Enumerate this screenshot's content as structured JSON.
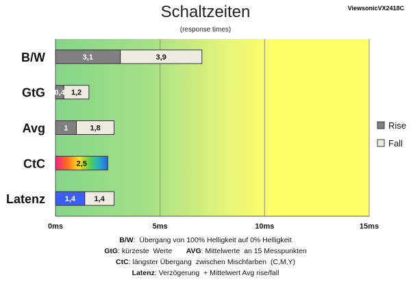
{
  "chart_data": {
    "type": "bar",
    "stacked": true,
    "orientation": "horizontal",
    "title": "Schaltzeiten",
    "subtitle": "(response times)",
    "model": "ViewsonicVX2418C",
    "categories": [
      "B/W",
      "GtG",
      "Avg",
      "CtC",
      "Latenz"
    ],
    "series": [
      {
        "name": "Rise",
        "values": [
          3.1,
          0.4,
          1,
          null,
          null
        ]
      },
      {
        "name": "Fall",
        "values": [
          3.9,
          1.2,
          1.8,
          null,
          null
        ]
      }
    ],
    "special": {
      "CtC": {
        "value": 2.5,
        "label": "2,5",
        "style": "rainbow"
      },
      "Latenz": {
        "values": [
          1.4,
          1.4
        ],
        "labels": [
          "1,4",
          "1,4"
        ]
      }
    },
    "bar_labels": [
      [
        "3,1",
        "3,9"
      ],
      [
        "0,4",
        "1,2"
      ],
      [
        "1",
        "1,8"
      ],
      [
        "2,5"
      ],
      [
        "1,4",
        "1,4"
      ]
    ],
    "xlim": [
      0,
      15
    ],
    "x_ticks": [
      {
        "value": 0,
        "label": "0ms"
      },
      {
        "value": 5,
        "label": "5ms"
      },
      {
        "value": 10,
        "label": "10ms"
      },
      {
        "value": 15,
        "label": "15ms"
      }
    ],
    "legend": {
      "position": "right",
      "items": [
        {
          "name": "Rise",
          "color": "#808080"
        },
        {
          "name": "Fall",
          "color": "#eeece1"
        }
      ]
    },
    "colors": {
      "rise": "#808080",
      "fall": "#eeece1",
      "latenz_rise": "#3d5ef2",
      "bg_green": "#8ad88a",
      "bg_yellow": "#ffff66"
    },
    "grid": true
  },
  "footnotes": [
    {
      "term": "B/W",
      "text": ":  Übergang von 100% Helligkeit auf 0% Helligkeit"
    },
    {
      "term": "GtG",
      "text": ": kürzeste  Werte",
      "term2": "AVG",
      "text2": ": Mittelwerte  an 15 Messpunkten"
    },
    {
      "term": "CtC",
      "text": ": längster Übergang  zwischen Mischfarben  (C,M,Y)"
    },
    {
      "term": "Latenz",
      "text": ": Verzögerung  + Mittelwert Avg rise/fall"
    }
  ]
}
